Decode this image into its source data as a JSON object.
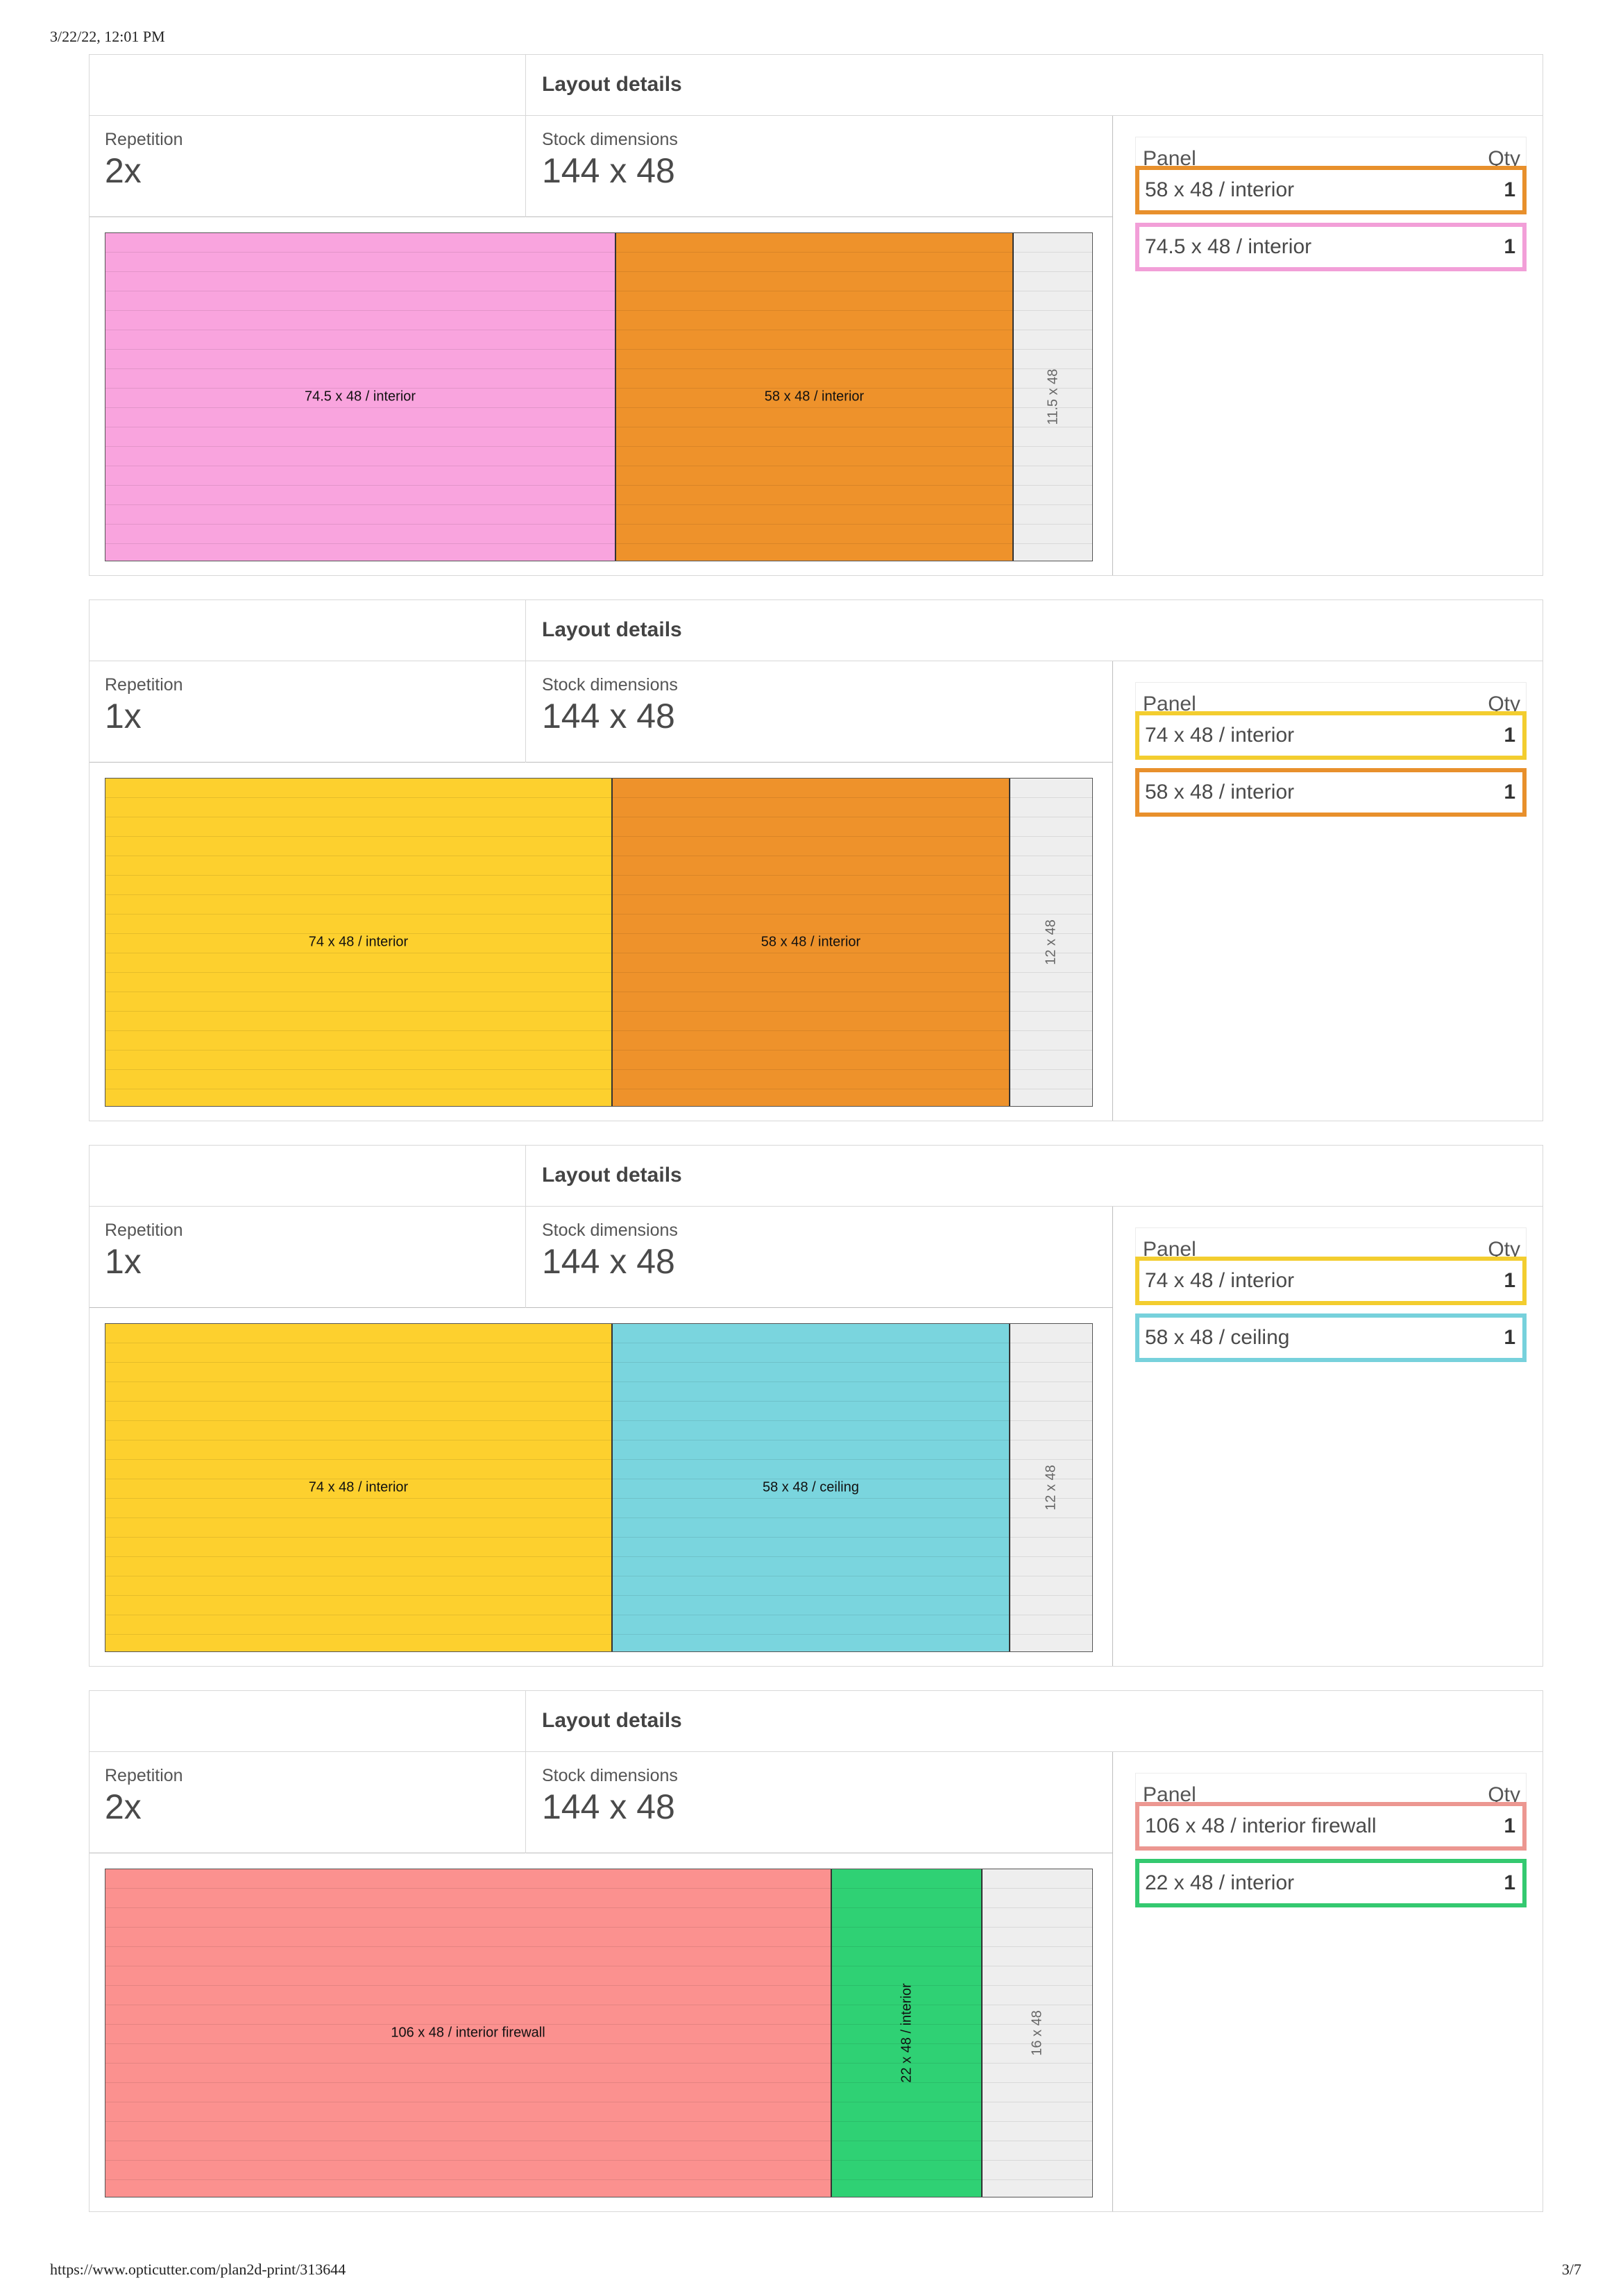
{
  "header": {
    "datetime": "3/22/22, 12:01 PM"
  },
  "footer": {
    "url": "https://www.opticutter.com/plan2d-print/313644",
    "page": "3/7"
  },
  "layouts": [
    {
      "title": "Layout details",
      "repetition_label": "Repetition",
      "repetition": "2x",
      "stock_label": "Stock dimensions",
      "stock": "144 x 48",
      "panel_header": "Panel",
      "qty_header": "Qty",
      "panels": [
        {
          "label": "58 x 48 / interior",
          "qty": "1",
          "color": "#e8902c"
        },
        {
          "label": "74.5 x 48 / interior",
          "qty": "1",
          "color": "#f29fd8"
        }
      ],
      "pieces": [
        {
          "label": "74.5 x 48 / interior",
          "color": "#f9a4de",
          "length": 74.5
        },
        {
          "label": "58 x 48 / interior",
          "color": "#ee922b",
          "length": 58
        }
      ],
      "waste": {
        "label": "11.5 x 48",
        "length": 11.5
      }
    },
    {
      "title": "Layout details",
      "repetition_label": "Repetition",
      "repetition": "1x",
      "stock_label": "Stock dimensions",
      "stock": "144 x 48",
      "panel_header": "Panel",
      "qty_header": "Qty",
      "panels": [
        {
          "label": "74 x 48 / interior",
          "qty": "1",
          "color": "#f3cd2f"
        },
        {
          "label": "58 x 48 / interior",
          "qty": "1",
          "color": "#e8902c"
        }
      ],
      "pieces": [
        {
          "label": "74 x 48 / interior",
          "color": "#fdd02e",
          "length": 74
        },
        {
          "label": "58 x 48 / interior",
          "color": "#ee922b",
          "length": 58
        }
      ],
      "waste": {
        "label": "12 x 48",
        "length": 12
      }
    },
    {
      "title": "Layout details",
      "repetition_label": "Repetition",
      "repetition": "1x",
      "stock_label": "Stock dimensions",
      "stock": "144 x 48",
      "panel_header": "Panel",
      "qty_header": "Qty",
      "panels": [
        {
          "label": "74 x 48 / interior",
          "qty": "1",
          "color": "#f3cd2f"
        },
        {
          "label": "58 x 48 / ceiling",
          "qty": "1",
          "color": "#77d1dc"
        }
      ],
      "pieces": [
        {
          "label": "74 x 48 / interior",
          "color": "#fdd02e",
          "length": 74
        },
        {
          "label": "58 x 48 / ceiling",
          "color": "#7ad5de",
          "length": 58
        }
      ],
      "waste": {
        "label": "12 x 48",
        "length": 12
      }
    },
    {
      "title": "Layout details",
      "repetition_label": "Repetition",
      "repetition": "2x",
      "stock_label": "Stock dimensions",
      "stock": "144 x 48",
      "panel_header": "Panel",
      "qty_header": "Qty",
      "panels": [
        {
          "label": "106 x 48 / interior firewall",
          "qty": "1",
          "color": "#ec9791"
        },
        {
          "label": "22 x 48 / interior",
          "qty": "1",
          "color": "#34c970"
        }
      ],
      "pieces": [
        {
          "label": "106 x 48 / interior firewall",
          "color": "#fb918f",
          "length": 106
        },
        {
          "label": "22 x 48 / interior",
          "color": "#2fd174",
          "length": 22,
          "vertical": true
        }
      ],
      "waste": {
        "label": "16 x 48",
        "length": 16
      }
    }
  ]
}
